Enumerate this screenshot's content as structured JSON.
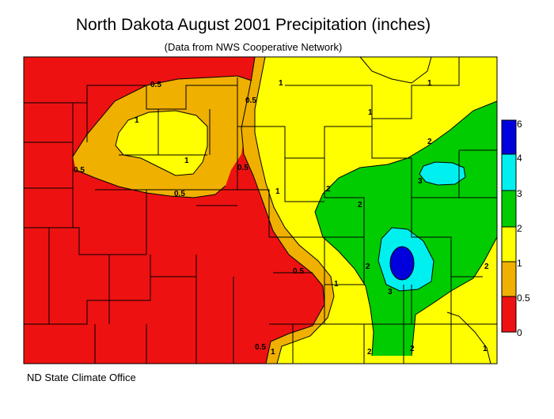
{
  "title": "North Dakota August 2001 Precipitation (inches)",
  "subtitle": "(Data from NWS Cooperative Network)",
  "credit": "ND State Climate Office",
  "legend": {
    "labels": [
      "6",
      "4",
      "3",
      "2",
      "1",
      "0.5",
      "0"
    ],
    "bands": [
      {
        "range": "4-6",
        "color": "#0000dd"
      },
      {
        "range": "3-4",
        "color": "#00f0f0"
      },
      {
        "range": "2-3",
        "color": "#00cc00"
      },
      {
        "range": "1-2",
        "color": "#ffff00"
      },
      {
        "range": "0.5-1",
        "color": "#f0b000"
      },
      {
        "range": "0-0.5",
        "color": "#ee1111"
      }
    ]
  },
  "contour_labels": [
    "0.5",
    "0.5",
    "0.5",
    "0.5",
    "0.5",
    "0.5",
    "0.5",
    "1",
    "1",
    "1",
    "1",
    "1",
    "1",
    "1",
    "1",
    "1",
    "2",
    "2",
    "2",
    "2",
    "2",
    "2",
    "2",
    "3",
    "3"
  ]
}
